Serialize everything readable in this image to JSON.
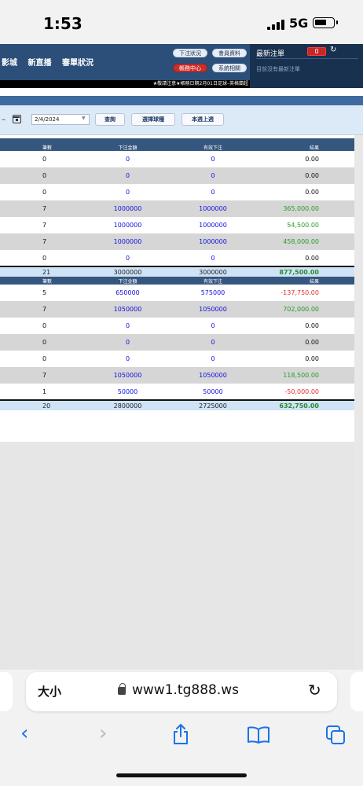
{
  "status": {
    "time": "1:53",
    "network": "5G"
  },
  "header": {
    "nav": [
      "影城",
      "新直播",
      "審單狀況"
    ],
    "buttons": {
      "bet_status": "下注狀況",
      "member_info": "會員資料",
      "account_center": "帳務中心",
      "system": "系統相關"
    },
    "ticker": "★敬請注意★帳務日期2月01日足球–英格蘭超"
  },
  "latest_bets": {
    "title": "最新注單",
    "count": "0",
    "empty_text": "目前沒有最新注單"
  },
  "filter": {
    "date": "2/4/2024",
    "query_label": "查詢",
    "select_sport_label": "選擇球種",
    "this_last_week_label": "本週上週"
  },
  "table": {
    "headers": [
      "筆數",
      "下注金額",
      "有效下注",
      "結果"
    ],
    "week1": [
      {
        "count": "0",
        "amount": "0",
        "valid": "0",
        "result": "0.00",
        "tone": "black"
      },
      {
        "count": "0",
        "amount": "0",
        "valid": "0",
        "result": "0.00",
        "tone": "black"
      },
      {
        "count": "0",
        "amount": "0",
        "valid": "0",
        "result": "0.00",
        "tone": "black"
      },
      {
        "count": "7",
        "amount": "1000000",
        "valid": "1000000",
        "result": "365,000.00",
        "tone": "green"
      },
      {
        "count": "7",
        "amount": "1000000",
        "valid": "1000000",
        "result": "54,500.00",
        "tone": "green"
      },
      {
        "count": "7",
        "amount": "1000000",
        "valid": "1000000",
        "result": "458,000.00",
        "tone": "green"
      },
      {
        "count": "0",
        "amount": "0",
        "valid": "0",
        "result": "0.00",
        "tone": "black"
      }
    ],
    "week1_total": {
      "count": "21",
      "amount": "3000000",
      "valid": "3000000",
      "result": "877,500.00"
    },
    "week2": [
      {
        "count": "5",
        "amount": "650000",
        "valid": "575000",
        "result": "-137,750.00",
        "tone": "red"
      },
      {
        "count": "7",
        "amount": "1050000",
        "valid": "1050000",
        "result": "702,000.00",
        "tone": "green"
      },
      {
        "count": "0",
        "amount": "0",
        "valid": "0",
        "result": "0.00",
        "tone": "black"
      },
      {
        "count": "0",
        "amount": "0",
        "valid": "0",
        "result": "0.00",
        "tone": "black"
      },
      {
        "count": "0",
        "amount": "0",
        "valid": "0",
        "result": "0.00",
        "tone": "black"
      },
      {
        "count": "7",
        "amount": "1050000",
        "valid": "1050000",
        "result": "118,500.00",
        "tone": "green"
      },
      {
        "count": "1",
        "amount": "50000",
        "valid": "50000",
        "result": "-50,000.00",
        "tone": "red"
      }
    ],
    "week2_total": {
      "count": "20",
      "amount": "2800000",
      "valid": "2725000",
      "result": "632,750.00"
    }
  },
  "browser": {
    "text_size_label": "大小",
    "url": "www1.tg888.ws"
  },
  "colors": {
    "header": "#2c4f7a",
    "table_header": "#35567f",
    "win": "#2a9a2a",
    "loss": "#e03030",
    "link_blue": "#1010e0"
  }
}
